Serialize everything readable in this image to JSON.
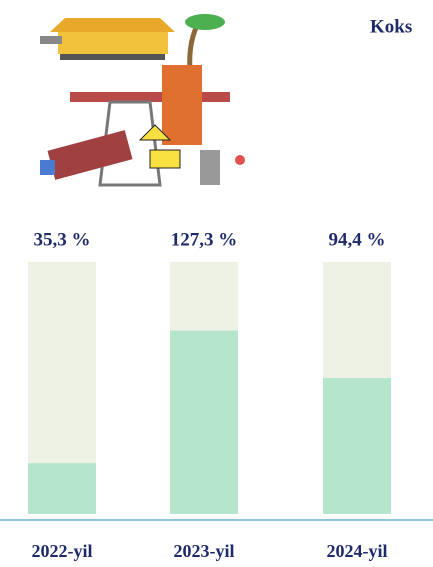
{
  "chart_data": {
    "type": "bar",
    "title": "Koks",
    "categories": [
      "2022-yil",
      "2023-yil",
      "2024-yil"
    ],
    "values": [
      35.3,
      127.3,
      94.4
    ],
    "value_labels": [
      "35,3 %",
      "127,3 %",
      "94,4 %"
    ],
    "color": "#b5e6cb",
    "track_color": "#edf2e4",
    "ylim": [
      0,
      175
    ]
  }
}
